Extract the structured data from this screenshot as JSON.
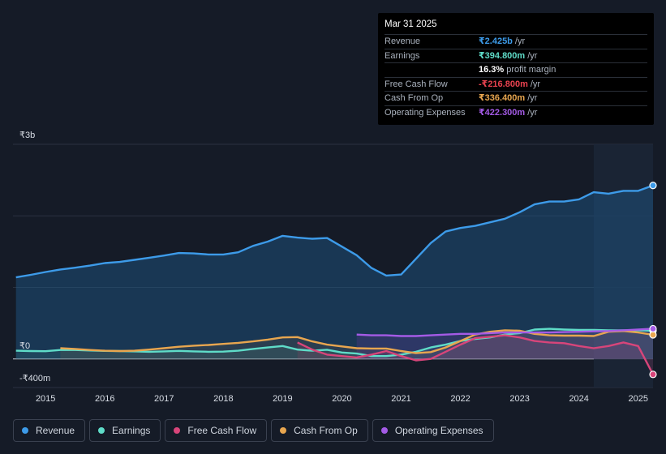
{
  "tooltip": {
    "date": "Mar 31 2025",
    "rows": [
      {
        "label": "Revenue",
        "value": "₹2.425b",
        "unit": "/yr",
        "color": "#3d9be9"
      },
      {
        "label": "Earnings",
        "value": "₹394.800m",
        "unit": "/yr",
        "color": "#5fdcc8"
      },
      {
        "label": "",
        "value": "16.3%",
        "unit": "profit margin",
        "color": "#ffffff"
      },
      {
        "label": "Free Cash Flow",
        "value": "-₹216.800m",
        "unit": "/yr",
        "color": "#e8424f"
      },
      {
        "label": "Cash From Op",
        "value": "₹336.400m",
        "unit": "/yr",
        "color": "#e8a64f"
      },
      {
        "label": "Operating Expenses",
        "value": "₹422.300m",
        "unit": "/yr",
        "color": "#a45be6"
      }
    ]
  },
  "chart_data": {
    "type": "line",
    "title": "",
    "y_labels": {
      "top": "₹3b",
      "zero": "₹0",
      "bottom": "-₹400m"
    },
    "ylim": [
      -400,
      3000
    ],
    "xlim": [
      2014.45,
      2025.25
    ],
    "x_ticks": [
      "2015",
      "2016",
      "2017",
      "2018",
      "2019",
      "2020",
      "2021",
      "2022",
      "2023",
      "2024",
      "2025"
    ],
    "x_tick_values": [
      2015,
      2016,
      2017,
      2018,
      2019,
      2020,
      2021,
      2022,
      2023,
      2024,
      2025
    ],
    "forecast_start": 2024.25,
    "series": [
      {
        "name": "Revenue",
        "color": "#3d9be9",
        "x": [
          2014.5,
          2014.75,
          2015,
          2015.25,
          2015.5,
          2015.75,
          2016,
          2016.25,
          2016.5,
          2016.75,
          2017,
          2017.25,
          2017.5,
          2017.75,
          2018,
          2018.25,
          2018.5,
          2018.75,
          2019,
          2019.25,
          2019.5,
          2019.75,
          2020,
          2020.25,
          2020.5,
          2020.75,
          2021,
          2021.25,
          2021.5,
          2021.75,
          2022,
          2022.25,
          2022.5,
          2022.75,
          2023,
          2023.25,
          2023.5,
          2023.75,
          2024,
          2024.25,
          2024.5,
          2024.75,
          2025,
          2025.25
        ],
        "values": [
          1140,
          1175,
          1215,
          1250,
          1275,
          1305,
          1340,
          1355,
          1385,
          1415,
          1445,
          1480,
          1475,
          1460,
          1460,
          1490,
          1580,
          1640,
          1720,
          1695,
          1680,
          1690,
          1570,
          1450,
          1270,
          1165,
          1180,
          1400,
          1620,
          1780,
          1830,
          1860,
          1910,
          1960,
          2050,
          2160,
          2200,
          2200,
          2230,
          2330,
          2310,
          2350,
          2350,
          2425
        ]
      },
      {
        "name": "Earnings",
        "color": "#5fdcc8",
        "x": [
          2014.5,
          2014.75,
          2015,
          2015.25,
          2015.5,
          2015.75,
          2016,
          2016.25,
          2016.5,
          2016.75,
          2017,
          2017.25,
          2017.5,
          2017.75,
          2018,
          2018.25,
          2018.5,
          2018.75,
          2019,
          2019.25,
          2019.5,
          2019.75,
          2020,
          2020.25,
          2020.5,
          2020.75,
          2021,
          2021.25,
          2021.5,
          2021.75,
          2022,
          2022.25,
          2022.5,
          2022.75,
          2023,
          2023.25,
          2023.5,
          2023.75,
          2024,
          2024.25,
          2024.5,
          2024.75,
          2025,
          2025.25
        ],
        "values": [
          115,
          110,
          108,
          125,
          125,
          118,
          112,
          110,
          105,
          100,
          105,
          112,
          105,
          100,
          102,
          115,
          140,
          160,
          180,
          130,
          115,
          128,
          90,
          75,
          40,
          40,
          60,
          100,
          160,
          200,
          250,
          280,
          300,
          340,
          360,
          410,
          420,
          410,
          405,
          405,
          400,
          400,
          400,
          395
        ]
      },
      {
        "name": "Free Cash Flow",
        "color": "#d8457a",
        "x": [
          2019.25,
          2019.5,
          2019.75,
          2020,
          2020.25,
          2020.5,
          2020.75,
          2021,
          2021.25,
          2021.5,
          2021.75,
          2022,
          2022.25,
          2022.5,
          2022.75,
          2023,
          2023.25,
          2023.5,
          2023.75,
          2024,
          2024.25,
          2024.5,
          2024.75,
          2025,
          2025.25
        ],
        "values": [
          230,
          130,
          60,
          40,
          20,
          60,
          110,
          40,
          -20,
          0,
          100,
          200,
          290,
          310,
          330,
          300,
          250,
          230,
          220,
          180,
          150,
          180,
          230,
          180,
          -216.8
        ]
      },
      {
        "name": "Cash From Op",
        "color": "#e8a64f",
        "x": [
          2015.25,
          2015.5,
          2015.75,
          2016,
          2016.25,
          2016.5,
          2016.75,
          2017,
          2017.25,
          2017.5,
          2017.75,
          2018,
          2018.25,
          2018.5,
          2018.75,
          2019,
          2019.25,
          2019.5,
          2019.75,
          2020,
          2020.25,
          2020.5,
          2020.75,
          2021,
          2021.25,
          2021.5,
          2021.75,
          2022,
          2022.25,
          2022.5,
          2022.75,
          2023,
          2023.25,
          2023.5,
          2023.75,
          2024,
          2024.25,
          2024.5,
          2024.75,
          2025,
          2025.25
        ],
        "values": [
          150,
          140,
          125,
          115,
          110,
          115,
          130,
          150,
          170,
          185,
          195,
          210,
          225,
          245,
          270,
          300,
          305,
          245,
          200,
          175,
          150,
          145,
          145,
          110,
          80,
          95,
          160,
          250,
          340,
          380,
          400,
          395,
          350,
          330,
          325,
          325,
          320,
          380,
          390,
          370,
          336.4
        ]
      },
      {
        "name": "Operating Expenses",
        "color": "#a45be6",
        "x": [
          2020.25,
          2020.5,
          2020.75,
          2021,
          2021.25,
          2021.5,
          2021.75,
          2022,
          2022.25,
          2022.5,
          2022.75,
          2023,
          2023.25,
          2023.5,
          2023.75,
          2024,
          2024.25,
          2024.5,
          2024.75,
          2025,
          2025.25
        ],
        "values": [
          340,
          330,
          330,
          320,
          320,
          330,
          340,
          350,
          350,
          360,
          370,
          370,
          370,
          370,
          375,
          380,
          385,
          390,
          400,
          410,
          422.3
        ]
      }
    ]
  },
  "legend": [
    {
      "label": "Revenue",
      "color": "#3d9be9"
    },
    {
      "label": "Earnings",
      "color": "#5fdcc8"
    },
    {
      "label": "Free Cash Flow",
      "color": "#d8457a"
    },
    {
      "label": "Cash From Op",
      "color": "#e8a64f"
    },
    {
      "label": "Operating Expenses",
      "color": "#a45be6"
    }
  ]
}
